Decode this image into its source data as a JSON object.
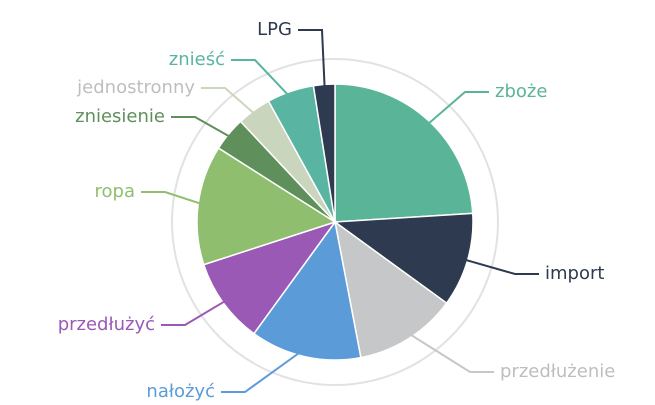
{
  "chart_data": {
    "type": "pie",
    "categories": [
      "zboże",
      "import",
      "przedłużenie",
      "nałożyć",
      "przedłużyć",
      "ropa",
      "zniesienie",
      "jednostronny",
      "znieść",
      "LPG"
    ],
    "values": [
      24,
      11,
      12,
      13,
      10,
      14,
      4,
      4,
      5.5,
      2.5
    ],
    "colors": [
      "#5ab498",
      "#2e3a4f",
      "#c5c7c9",
      "#5b9bd8",
      "#9b59b6",
      "#8fbf6e",
      "#5f8f5a",
      "#c9d6bd",
      "#5ab4a2",
      "#2e3a4f"
    ]
  }
}
